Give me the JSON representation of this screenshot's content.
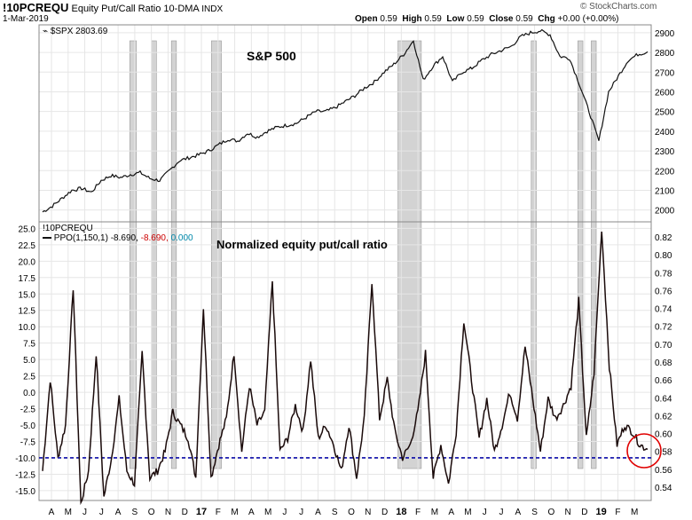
{
  "header": {
    "ticker": "!10PCREQU",
    "description": "Equity Put/Call Ratio 10-DMA",
    "exchange": "INDX",
    "date": "1-Mar-2019",
    "open_label": "Open",
    "open": "0.59",
    "high_label": "High",
    "high": "0.59",
    "low_label": "Low",
    "low": "0.59",
    "close_label": "Close",
    "close": "0.59",
    "chg_label": "Chg",
    "chg": "+0.00 (+0.00%)",
    "watermark": "© StockCharts.com",
    "upper_legend": "$SPX 2803.69",
    "lower_title": "!10PCREQU",
    "ppo_legend": "PPO(1,150,1)",
    "ppo_val1": "-8.690,",
    "ppo_val2": "-8.690,",
    "ppo_val3": "0.000"
  },
  "colors": {
    "line": "#111111",
    "shade": "#d3d3d3",
    "grid": "#e6e6e6",
    "dashed": "#0a0aa8",
    "circle": "#e00000",
    "ppo_val2": "#cc0000",
    "ppo_val3": "#0088aa"
  },
  "chart_data": [
    {
      "type": "line",
      "title": "S&P 500",
      "series": [
        {
          "name": "$SPX",
          "values": [
            1990,
            2020,
            2060,
            2100,
            2110,
            2090,
            2150,
            2175,
            2165,
            2180,
            2190,
            2160,
            2150,
            2200,
            2250,
            2265,
            2280,
            2300,
            2330,
            2360,
            2350,
            2390,
            2370,
            2400,
            2420,
            2430,
            2440,
            2470,
            2500,
            2500,
            2520,
            2550,
            2580,
            2620,
            2650,
            2700,
            2740,
            2790,
            2860,
            2660,
            2730,
            2780,
            2650,
            2700,
            2720,
            2760,
            2790,
            2810,
            2830,
            2880,
            2900,
            2910,
            2890,
            2780,
            2770,
            2640,
            2500,
            2350,
            2600,
            2680,
            2760,
            2790,
            2803
          ]
        }
      ],
      "ylim": [
        1940,
        2940
      ],
      "yticks": [
        "2900",
        "2800",
        "2700",
        "2600",
        "2500",
        "2400",
        "2300",
        "2200",
        "2100",
        "2000"
      ]
    },
    {
      "type": "line",
      "title": "Normalized equity put/call ratio",
      "series": [
        {
          "name": "PPO(1,150,1)",
          "values": [
            -12,
            2,
            -10,
            -5,
            16,
            -17,
            -12,
            6,
            -16,
            -10,
            -1,
            -12,
            -14,
            6,
            -13,
            -12,
            -9,
            -3,
            -5,
            -7,
            -13,
            13,
            -13,
            -8,
            -4,
            6,
            -9,
            1,
            -5,
            -3,
            17,
            -9,
            -7,
            -2,
            -6,
            5,
            -7,
            -5,
            -8,
            -12,
            -5,
            -13,
            -4,
            17,
            -4,
            2,
            -6,
            -10,
            -8,
            -3,
            6,
            -13,
            -8,
            -14,
            -6,
            11,
            2,
            -7,
            -1,
            -9,
            -5,
            0,
            -4,
            7,
            -1,
            -9,
            -1,
            -4,
            -2,
            1,
            14,
            -7,
            3,
            25,
            4,
            -8,
            -5,
            -6,
            -8,
            -8.69
          ]
        }
      ],
      "ylim": [
        -16.5,
        26
      ],
      "yticks_left": [
        "25.0",
        "22.5",
        "20.0",
        "17.5",
        "15.0",
        "12.5",
        "10.0",
        "7.5",
        "5.0",
        "2.5",
        "0.0",
        "-2.5",
        "-5.0",
        "-7.5",
        "-10.0",
        "-12.5",
        "-15.0"
      ],
      "yticks_right": [
        "0.82",
        "0.80",
        "0.78",
        "0.76",
        "0.74",
        "0.72",
        "0.70",
        "0.68",
        "0.66",
        "0.64",
        "0.62",
        "0.60",
        "0.58",
        "0.56",
        "0.54"
      ],
      "reference_line": -10
    }
  ],
  "x_axis": {
    "labels": [
      "A",
      "M",
      "J",
      "J",
      "A",
      "S",
      "O",
      "N",
      "D",
      "17",
      "F",
      "M",
      "A",
      "M",
      "J",
      "J",
      "A",
      "S",
      "O",
      "N",
      "D",
      "18",
      "F",
      "M",
      "A",
      "M",
      "J",
      "J",
      "A",
      "S",
      "O",
      "N",
      "D",
      "19",
      "F",
      "M"
    ]
  },
  "annotations": {
    "upper_label": "S&P 500",
    "lower_label": "Normalized equity put/call ratio"
  },
  "shaded_periods_month_index": [
    [
      4.7,
      5.1
    ],
    [
      6.0,
      6.3
    ],
    [
      7.2,
      7.5
    ],
    [
      9.6,
      10.2
    ],
    [
      20.8,
      22.2
    ],
    [
      28.8,
      29.1
    ],
    [
      31.6,
      31.9
    ],
    [
      32.4,
      32.7
    ]
  ]
}
